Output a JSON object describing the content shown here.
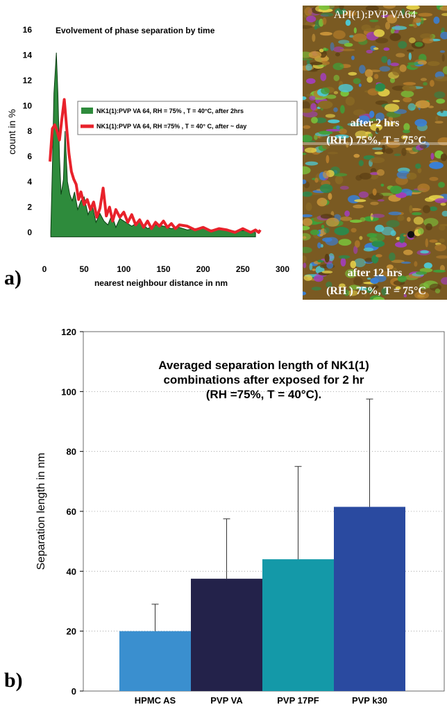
{
  "panel_labels": [
    "a)",
    "b)"
  ],
  "micrograph": {
    "title": "API(1):PVP VA64",
    "caption_top_line1": "after 2 hrs",
    "caption_top_line2": "(RH ) 75%, T = 75°C",
    "caption_bottom_line1": "after 12 hrs",
    "caption_bottom_line2": "(RH ) 75%, T = 75°C"
  },
  "chart_data": [
    {
      "type": "area",
      "title": "Evolvement of phase separation by time",
      "xlabel": "nearest neighbour distance in nm",
      "ylabel": "count in %",
      "xlim": [
        0,
        300
      ],
      "ylim": [
        -1,
        16
      ],
      "xticks": [
        "0",
        "50",
        "100",
        "150",
        "200",
        "250",
        "300"
      ],
      "yticks": [
        "0",
        "2",
        "4",
        "6",
        "8",
        "10",
        "12",
        "14",
        "16"
      ],
      "grid": false,
      "legend_position": "center-right",
      "series": [
        {
          "name": "NK1(1):PVP VA 64, RH = 75% , T = 40°C, after 2hrs",
          "style": "filled-area",
          "color": "#2e8b3c",
          "x": [
            8,
            10,
            12,
            15,
            17,
            19,
            21,
            24,
            26,
            29,
            32,
            35,
            38,
            42,
            46,
            50,
            55,
            60,
            65,
            70,
            75,
            80,
            85,
            90,
            95,
            100,
            110,
            120,
            130,
            140,
            150,
            160,
            170,
            180,
            190,
            200,
            210,
            220,
            230,
            240,
            250,
            260,
            266
          ],
          "y": [
            0,
            5,
            11,
            14.2,
            11,
            6,
            3,
            4.2,
            8,
            4,
            3,
            2.5,
            3.2,
            1.8,
            2.5,
            2.8,
            1.4,
            2.2,
            0.8,
            1.5,
            0.9,
            0.6,
            1.4,
            0.4,
            1.1,
            0.9,
            0.5,
            0.9,
            0.3,
            0.6,
            0.5,
            0.3,
            0.4,
            0.2,
            0.3,
            0.35,
            0.2,
            0.3,
            0.25,
            0.1,
            0.15,
            0.1,
            0
          ]
        },
        {
          "name": "NK1(1):PVP VA 64, RH =75% , T = 40° C, after ~ day",
          "style": "line",
          "color": "#e8222b",
          "x": [
            7,
            10,
            13,
            16,
            19,
            22,
            25,
            28,
            31,
            34,
            37,
            40,
            43,
            46,
            50,
            54,
            58,
            62,
            66,
            70,
            74,
            78,
            82,
            86,
            90,
            95,
            100,
            105,
            110,
            115,
            120,
            125,
            130,
            135,
            140,
            145,
            150,
            155,
            160,
            165,
            170,
            180,
            190,
            200,
            210,
            220,
            230,
            240,
            250,
            260,
            266,
            270,
            272
          ],
          "y": [
            5.6,
            8.2,
            8.5,
            8.0,
            7.3,
            9.0,
            10.5,
            8.3,
            6.2,
            4.8,
            4.2,
            3.8,
            2.6,
            3.2,
            2.2,
            2.6,
            1.8,
            2.4,
            1.2,
            1.9,
            3.5,
            1.3,
            2.0,
            0.9,
            1.8,
            1.2,
            1.6,
            0.8,
            1.4,
            0.6,
            1.0,
            0.4,
            0.9,
            0.3,
            0.8,
            0.5,
            0.9,
            0.4,
            0.7,
            0.3,
            0.6,
            0.5,
            0.2,
            0.4,
            0.1,
            0.3,
            0.2,
            0.0,
            0.3,
            0.0,
            0.2,
            0.0,
            0.2
          ]
        }
      ]
    },
    {
      "type": "bar",
      "title_lines": [
        "Averaged separation length of NK1(1)",
        "combinations after exposed for  2 hr",
        "(RH =75%, T = 40°C)."
      ],
      "xlabel": "",
      "ylabel": "Separation length in nm",
      "ylim": [
        0,
        120
      ],
      "yticks": [
        "0",
        "20",
        "40",
        "60",
        "80",
        "100",
        "120"
      ],
      "grid": true,
      "categories": [
        "HPMC AS",
        "PVP VA",
        "PVP 17PF",
        "PVP k30"
      ],
      "values": [
        20,
        37.5,
        44,
        61.5
      ],
      "errors": [
        9,
        20,
        31,
        36
      ],
      "colors": [
        "#3a8fcf",
        "#23224a",
        "#1499a8",
        "#2a4aa0"
      ]
    }
  ]
}
